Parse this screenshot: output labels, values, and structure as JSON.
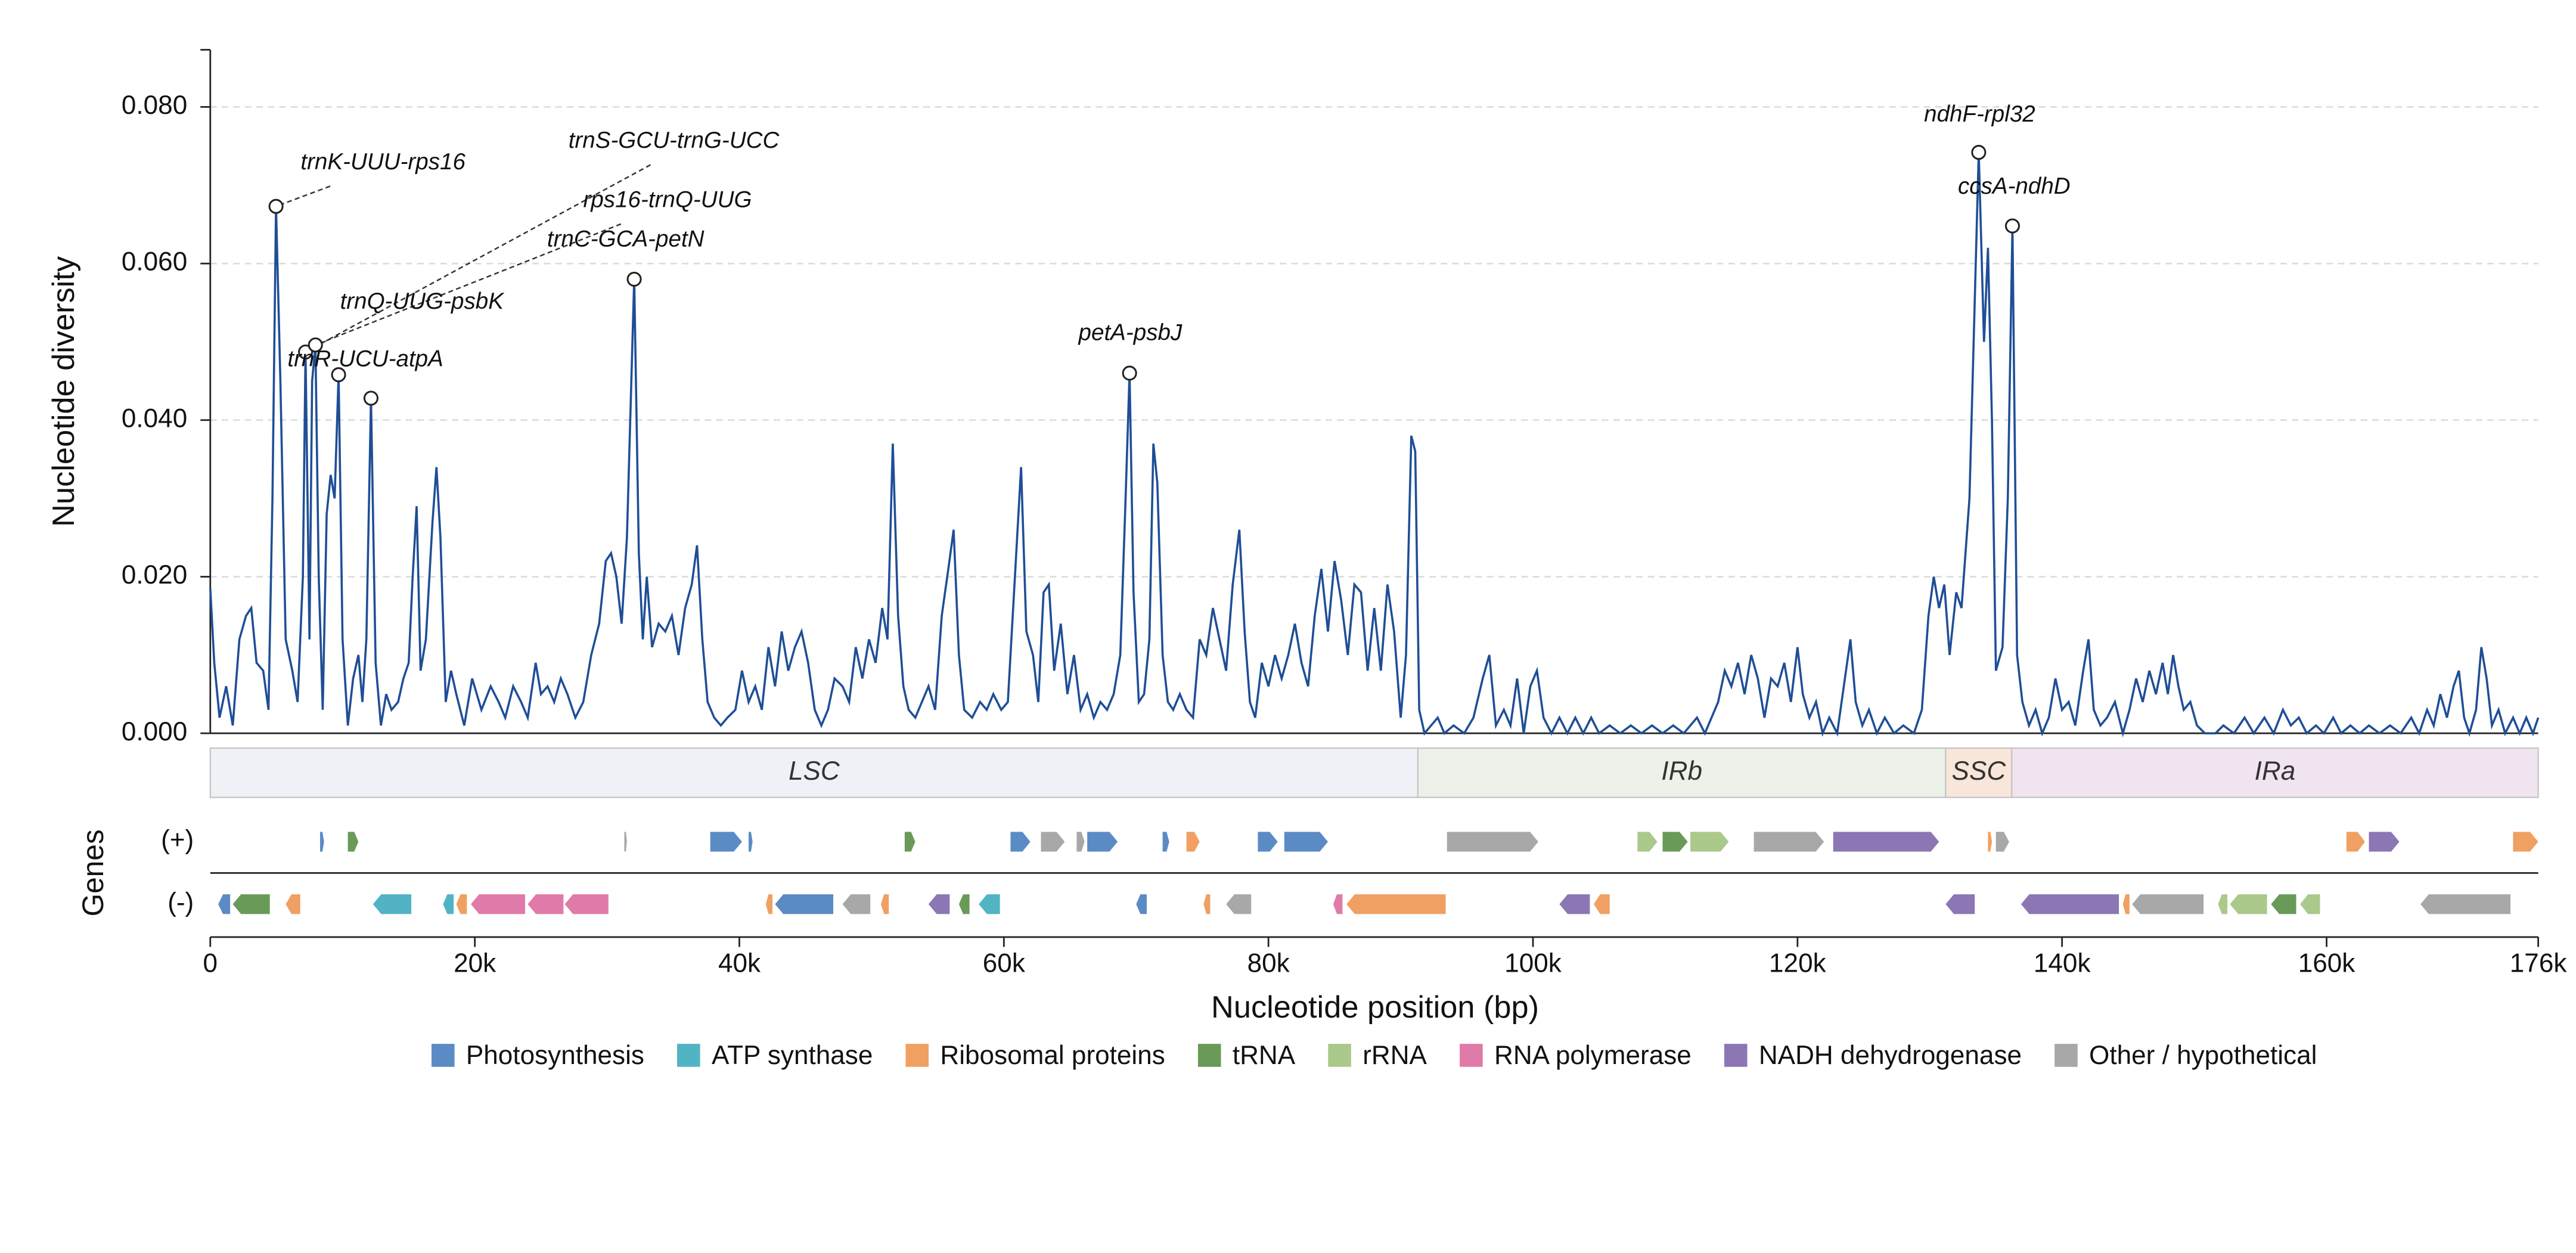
{
  "chart_data": {
    "type": "line",
    "ylabel": "Nucleotide diversity",
    "xlabel": "Nucleotide position (bp)",
    "genes_label": "Genes",
    "color": "#1f4e96",
    "grid": true,
    "xlim": [
      0,
      176000
    ],
    "ylim": [
      0,
      0.0873
    ],
    "xticks": [
      0,
      {
        "value": 20000,
        "label": "20k"
      },
      {
        "value": 40000,
        "label": "40k"
      },
      {
        "value": 60000,
        "label": "60k"
      },
      {
        "value": 80000,
        "label": "80k"
      },
      {
        "value": 100000,
        "label": "100k"
      },
      {
        "value": 120000,
        "label": "120k"
      },
      {
        "value": 140000,
        "label": "140k"
      },
      {
        "value": 160000,
        "label": "160k"
      },
      {
        "value": 176000,
        "label": "176k"
      }
    ],
    "yticks": [
      {
        "value": 0,
        "label": "0.000"
      },
      {
        "value": 0.02,
        "label": "0.020"
      },
      {
        "value": 0.04,
        "label": "0.040"
      },
      {
        "value": 0.06,
        "label": "0.060"
      },
      {
        "value": 0.08,
        "label": "0.080"
      }
    ],
    "x": [
      0,
      300,
      700,
      1200,
      1700,
      2200,
      2700,
      3100,
      3500,
      4000,
      4400,
      4700,
      4970,
      5300,
      5700,
      6200,
      6600,
      7000,
      7200,
      7500,
      7700,
      7950,
      8200,
      8500,
      8800,
      9100,
      9400,
      9700,
      10000,
      10400,
      10800,
      11200,
      11500,
      11800,
      12150,
      12500,
      12900,
      13300,
      13700,
      14200,
      14600,
      15000,
      15300,
      15600,
      15900,
      16300,
      16800,
      17100,
      17400,
      17800,
      18200,
      18600,
      19200,
      19800,
      20500,
      21200,
      21800,
      22300,
      22900,
      23500,
      24000,
      24600,
      25000,
      25500,
      26000,
      26500,
      27000,
      27600,
      28200,
      28800,
      29400,
      29900,
      30300,
      30700,
      31100,
      31500,
      32050,
      32400,
      32700,
      33000,
      33400,
      33900,
      34400,
      34900,
      35400,
      35900,
      36400,
      36800,
      37200,
      37600,
      38100,
      38600,
      39100,
      39700,
      40200,
      40700,
      41200,
      41700,
      42200,
      42700,
      43200,
      43700,
      44200,
      44700,
      45200,
      45700,
      46200,
      46700,
      47200,
      47800,
      48300,
      48800,
      49300,
      49800,
      50300,
      50800,
      51200,
      51600,
      52000,
      52400,
      52800,
      53300,
      53800,
      54300,
      54800,
      55300,
      55800,
      56200,
      56600,
      57000,
      57600,
      58200,
      58700,
      59200,
      59800,
      60300,
      60800,
      61300,
      61700,
      62200,
      62600,
      63000,
      63400,
      63800,
      64300,
      64800,
      65300,
      65800,
      66300,
      66800,
      67300,
      67800,
      68300,
      68800,
      69200,
      69500,
      69800,
      70200,
      70600,
      71000,
      71300,
      71600,
      72000,
      72400,
      72800,
      73300,
      73800,
      74300,
      74800,
      75300,
      75800,
      76300,
      76800,
      77300,
      77800,
      78200,
      78600,
      79000,
      79500,
      80000,
      80500,
      81000,
      81500,
      82000,
      82500,
      83000,
      83500,
      84000,
      84500,
      85000,
      85500,
      86000,
      86500,
      87000,
      87500,
      88000,
      88500,
      89000,
      89500,
      90000,
      90400,
      90800,
      91100,
      91400,
      91800,
      92300,
      92800,
      93300,
      94000,
      94800,
      95500,
      96200,
      96700,
      97200,
      97800,
      98300,
      98800,
      99300,
      99800,
      100300,
      100800,
      101400,
      102000,
      102600,
      103200,
      103800,
      104400,
      105000,
      105800,
      106600,
      107400,
      108200,
      109000,
      109800,
      110600,
      111400,
      112400,
      113000,
      114000,
      114500,
      115000,
      115500,
      116000,
      116500,
      117000,
      117500,
      118000,
      118500,
      119000,
      119500,
      120000,
      120400,
      120900,
      121400,
      121900,
      122400,
      123000,
      123500,
      124000,
      124400,
      124900,
      125400,
      126000,
      126600,
      127300,
      128000,
      128800,
      129400,
      129900,
      130300,
      130700,
      131100,
      131500,
      132000,
      132400,
      133000,
      133700,
      134100,
      134400,
      134700,
      135000,
      135500,
      135900,
      136250,
      136600,
      137000,
      137500,
      138000,
      138500,
      139000,
      139500,
      140000,
      140500,
      141000,
      141600,
      142000,
      142400,
      142900,
      143400,
      144000,
      144600,
      145100,
      145600,
      146100,
      146600,
      147100,
      147600,
      148000,
      148400,
      148800,
      149200,
      149700,
      150200,
      150800,
      151600,
      152200,
      153000,
      153800,
      154500,
      155300,
      156000,
      156700,
      157300,
      157900,
      158500,
      159200,
      159800,
      160500,
      161100,
      161800,
      162500,
      163200,
      164000,
      164800,
      165600,
      166400,
      167000,
      167600,
      168100,
      168600,
      169100,
      169600,
      170000,
      170400,
      170800,
      171300,
      171700,
      172100,
      172500,
      173000,
      173500,
      174100,
      174600,
      175100,
      175600,
      176000
    ],
    "values": [
      0.0185,
      0.009,
      0.002,
      0.006,
      0.001,
      0.012,
      0.015,
      0.016,
      0.009,
      0.008,
      0.003,
      0.03,
      0.0673,
      0.045,
      0.012,
      0.008,
      0.004,
      0.02,
      0.0487,
      0.012,
      0.045,
      0.0496,
      0.02,
      0.003,
      0.028,
      0.033,
      0.03,
      0.0458,
      0.012,
      0.001,
      0.007,
      0.01,
      0.004,
      0.012,
      0.0428,
      0.009,
      0.001,
      0.005,
      0.003,
      0.004,
      0.007,
      0.009,
      0.02,
      0.029,
      0.008,
      0.012,
      0.027,
      0.034,
      0.025,
      0.004,
      0.008,
      0.005,
      0.001,
      0.007,
      0.003,
      0.006,
      0.004,
      0.002,
      0.006,
      0.004,
      0.002,
      0.009,
      0.005,
      0.006,
      0.004,
      0.007,
      0.005,
      0.002,
      0.004,
      0.01,
      0.014,
      0.022,
      0.023,
      0.02,
      0.014,
      0.025,
      0.058,
      0.023,
      0.012,
      0.02,
      0.011,
      0.014,
      0.013,
      0.015,
      0.01,
      0.016,
      0.019,
      0.024,
      0.012,
      0.004,
      0.002,
      0.001,
      0.002,
      0.003,
      0.008,
      0.004,
      0.006,
      0.003,
      0.011,
      0.006,
      0.013,
      0.008,
      0.011,
      0.013,
      0.009,
      0.003,
      0.001,
      0.003,
      0.007,
      0.006,
      0.004,
      0.011,
      0.007,
      0.012,
      0.009,
      0.016,
      0.012,
      0.037,
      0.015,
      0.006,
      0.003,
      0.002,
      0.004,
      0.006,
      0.003,
      0.015,
      0.021,
      0.026,
      0.01,
      0.003,
      0.002,
      0.004,
      0.003,
      0.005,
      0.003,
      0.004,
      0.019,
      0.034,
      0.013,
      0.01,
      0.004,
      0.018,
      0.019,
      0.008,
      0.014,
      0.005,
      0.01,
      0.003,
      0.005,
      0.002,
      0.004,
      0.003,
      0.005,
      0.01,
      0.03,
      0.046,
      0.018,
      0.004,
      0.005,
      0.012,
      0.037,
      0.032,
      0.01,
      0.004,
      0.003,
      0.005,
      0.003,
      0.002,
      0.012,
      0.01,
      0.016,
      0.012,
      0.008,
      0.019,
      0.026,
      0.013,
      0.004,
      0.002,
      0.009,
      0.006,
      0.01,
      0.007,
      0.01,
      0.014,
      0.009,
      0.006,
      0.015,
      0.021,
      0.013,
      0.022,
      0.017,
      0.01,
      0.019,
      0.018,
      0.008,
      0.016,
      0.008,
      0.019,
      0.013,
      0.002,
      0.01,
      0.038,
      0.036,
      0.003,
      0,
      0.001,
      0.002,
      0,
      0.001,
      0,
      0.002,
      0.007,
      0.01,
      0.001,
      0.003,
      0.001,
      0.007,
      0,
      0.006,
      0.008,
      0.002,
      0,
      0.002,
      0,
      0.002,
      0,
      0.002,
      0,
      0.001,
      0,
      0.001,
      0,
      0.001,
      0,
      0.001,
      0,
      0.002,
      0,
      0.004,
      0.008,
      0.006,
      0.009,
      0.005,
      0.01,
      0.007,
      0.002,
      0.007,
      0.006,
      0.009,
      0.004,
      0.011,
      0.005,
      0.002,
      0.004,
      0,
      0.002,
      0,
      0.006,
      0.012,
      0.004,
      0.001,
      0.003,
      0,
      0.002,
      0,
      0.001,
      0,
      0.003,
      0.015,
      0.02,
      0.016,
      0.019,
      0.01,
      0.018,
      0.016,
      0.03,
      0.0742,
      0.05,
      0.062,
      0.04,
      0.008,
      0.011,
      0.03,
      0.0648,
      0.01,
      0.004,
      0.001,
      0.003,
      0,
      0.002,
      0.007,
      0.003,
      0.004,
      0.001,
      0.008,
      0.012,
      0.003,
      0.001,
      0.002,
      0.004,
      0,
      0.003,
      0.007,
      0.004,
      0.008,
      0.005,
      0.009,
      0.005,
      0.01,
      0.006,
      0.003,
      0.004,
      0.001,
      0,
      0,
      0.001,
      0,
      0.002,
      0,
      0.002,
      0,
      0.003,
      0.001,
      0.002,
      0,
      0.001,
      0,
      0.002,
      0,
      0.001,
      0,
      0.001,
      0,
      0.001,
      0,
      0.002,
      0,
      0.003,
      0.001,
      0.005,
      0.002,
      0.006,
      0.008,
      0.002,
      0,
      0.003,
      0.011,
      0.007,
      0.001,
      0.003,
      0,
      0.002,
      0,
      0.002,
      0,
      0.002
    ],
    "annotations": [
      {
        "text": "trnK-UUU-rps16",
        "x": 4970,
        "y": 0.0673
      },
      {
        "text": "trnS-GCU-trnG-UCC",
        "x": 7200,
        "y": 0.0487
      },
      {
        "text": "rps16-trnQ-UUG",
        "x": 7950,
        "y": 0.0496
      },
      {
        "text": "trnQ-UUG-psbK",
        "x": 9700,
        "y": 0.0458
      },
      {
        "text": "trnR-UCU-atpA",
        "x": 12150,
        "y": 0.0428
      },
      {
        "text": "trnC-GCA-petN",
        "x": 32050,
        "y": 0.058
      },
      {
        "text": "petA-psbJ",
        "x": 69500,
        "y": 0.046
      },
      {
        "text": "ndhF-rpl32",
        "x": 133700,
        "y": 0.0742
      },
      {
        "text": "ccsA-ndhD",
        "x": 136250,
        "y": 0.0648
      }
    ],
    "regions": [
      {
        "name": "LSC",
        "start": 0,
        "end": 91300,
        "color": "#eef2f6"
      },
      {
        "name": "IRb",
        "start": 91300,
        "end": 131200,
        "color": "#ecf2ea"
      },
      {
        "name": "SSC",
        "start": 131200,
        "end": 136200,
        "color": "#f9e6da"
      },
      {
        "name": "IRa",
        "start": 136200,
        "end": 176000,
        "color": "#f1e4f1"
      }
    ],
    "legend": [
      {
        "name": "Photosynthesis",
        "color": "#5b8bc5"
      },
      {
        "name": "ATP synthase",
        "color": "#52b3c4"
      },
      {
        "name": "Ribosomal proteins",
        "color": "#f0a062"
      },
      {
        "name": "tRNA",
        "color": "#6a9a58"
      },
      {
        "name": "rRNA",
        "color": "#aac98a"
      },
      {
        "name": "RNA polymerase",
        "color": "#e07aa8"
      },
      {
        "name": "NADH dehydrogenase",
        "color": "#8c76b4"
      },
      {
        "name": "Other / hypothetical",
        "color": "#a8a8a8"
      }
    ],
    "gene_tracks": [
      {
        "label": "(+)",
        "genes": [
          [
            8300,
            8600,
            0
          ],
          [
            10400,
            11200,
            3
          ],
          [
            31300,
            31500,
            7
          ],
          [
            37800,
            40200,
            0
          ],
          [
            40700,
            41000,
            0
          ],
          [
            52500,
            53300,
            3
          ],
          [
            60500,
            62000,
            0
          ],
          [
            62800,
            64600,
            7
          ],
          [
            65500,
            66100,
            7
          ],
          [
            66300,
            68600,
            0
          ],
          [
            72000,
            72500,
            0
          ],
          [
            73800,
            74800,
            2
          ],
          [
            79200,
            80700,
            0
          ],
          [
            81200,
            84500,
            0
          ],
          [
            93500,
            100400,
            7
          ],
          [
            107900,
            109400,
            4
          ],
          [
            109800,
            111700,
            3
          ],
          [
            111900,
            114800,
            4
          ],
          [
            116700,
            122000,
            7
          ],
          [
            122700,
            130700,
            6
          ],
          [
            134400,
            134700,
            2
          ],
          [
            135000,
            136000,
            7
          ],
          [
            161500,
            162900,
            2
          ],
          [
            163200,
            165500,
            6
          ],
          [
            174100,
            176000,
            2
          ]
        ]
      },
      {
        "label": "(-)",
        "genes": [
          [
            600,
            1500,
            0
          ],
          [
            1700,
            4500,
            3
          ],
          [
            5700,
            6800,
            2
          ],
          [
            12300,
            15200,
            1
          ],
          [
            17600,
            18400,
            1
          ],
          [
            18600,
            19400,
            2
          ],
          [
            19700,
            23800,
            5
          ],
          [
            24000,
            26700,
            5
          ],
          [
            26800,
            30100,
            5
          ],
          [
            42000,
            42500,
            2
          ],
          [
            42700,
            47100,
            0
          ],
          [
            47800,
            49900,
            7
          ],
          [
            50700,
            51300,
            2
          ],
          [
            54300,
            55900,
            6
          ],
          [
            56600,
            57400,
            3
          ],
          [
            58100,
            59700,
            1
          ],
          [
            70000,
            70800,
            0
          ],
          [
            75100,
            75600,
            2
          ],
          [
            76800,
            78700,
            7
          ],
          [
            84900,
            85600,
            5
          ],
          [
            85900,
            93400,
            2
          ],
          [
            102000,
            104300,
            6
          ],
          [
            104600,
            105800,
            2
          ],
          [
            131200,
            133400,
            6
          ],
          [
            136900,
            144300,
            6
          ],
          [
            144600,
            145100,
            2
          ],
          [
            145300,
            150700,
            7
          ],
          [
            151800,
            152500,
            4
          ],
          [
            152700,
            155500,
            4
          ],
          [
            155800,
            157700,
            3
          ],
          [
            158000,
            159500,
            4
          ],
          [
            167100,
            173900,
            7
          ]
        ]
      }
    ]
  }
}
